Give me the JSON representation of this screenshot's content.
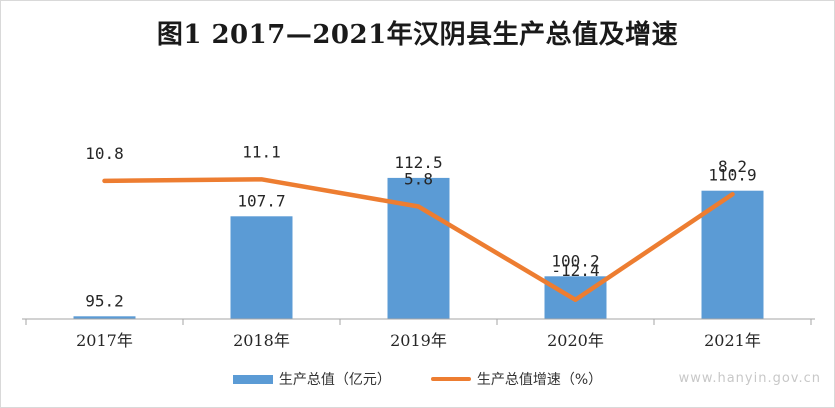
{
  "chart_data": {
    "type": "bar",
    "title": "图1 2017—2021年汉阴县生产总值及增速",
    "categories": [
      "2017年",
      "2018年",
      "2019年",
      "2020年",
      "2021年"
    ],
    "series": [
      {
        "name": "生产总值（亿元）",
        "type": "bar",
        "values": [
          95.2,
          107.7,
          112.5,
          100.2,
          110.9
        ],
        "color": "#5b9bd5"
      },
      {
        "name": "生产总值增速（%）",
        "type": "line",
        "values": [
          10.8,
          11.1,
          5.8,
          -12.4,
          8.2
        ],
        "color": "#ed7d31"
      }
    ],
    "bar_labels": [
      "95.2",
      "107.7",
      "112.5",
      "100.2",
      "110.9"
    ],
    "line_labels": [
      "10.8",
      "11.1",
      "5.8",
      "-12.4",
      "8.2"
    ],
    "legend_position": "bottom",
    "grid": false
  },
  "watermark": "www.hanyin.gov.cn"
}
